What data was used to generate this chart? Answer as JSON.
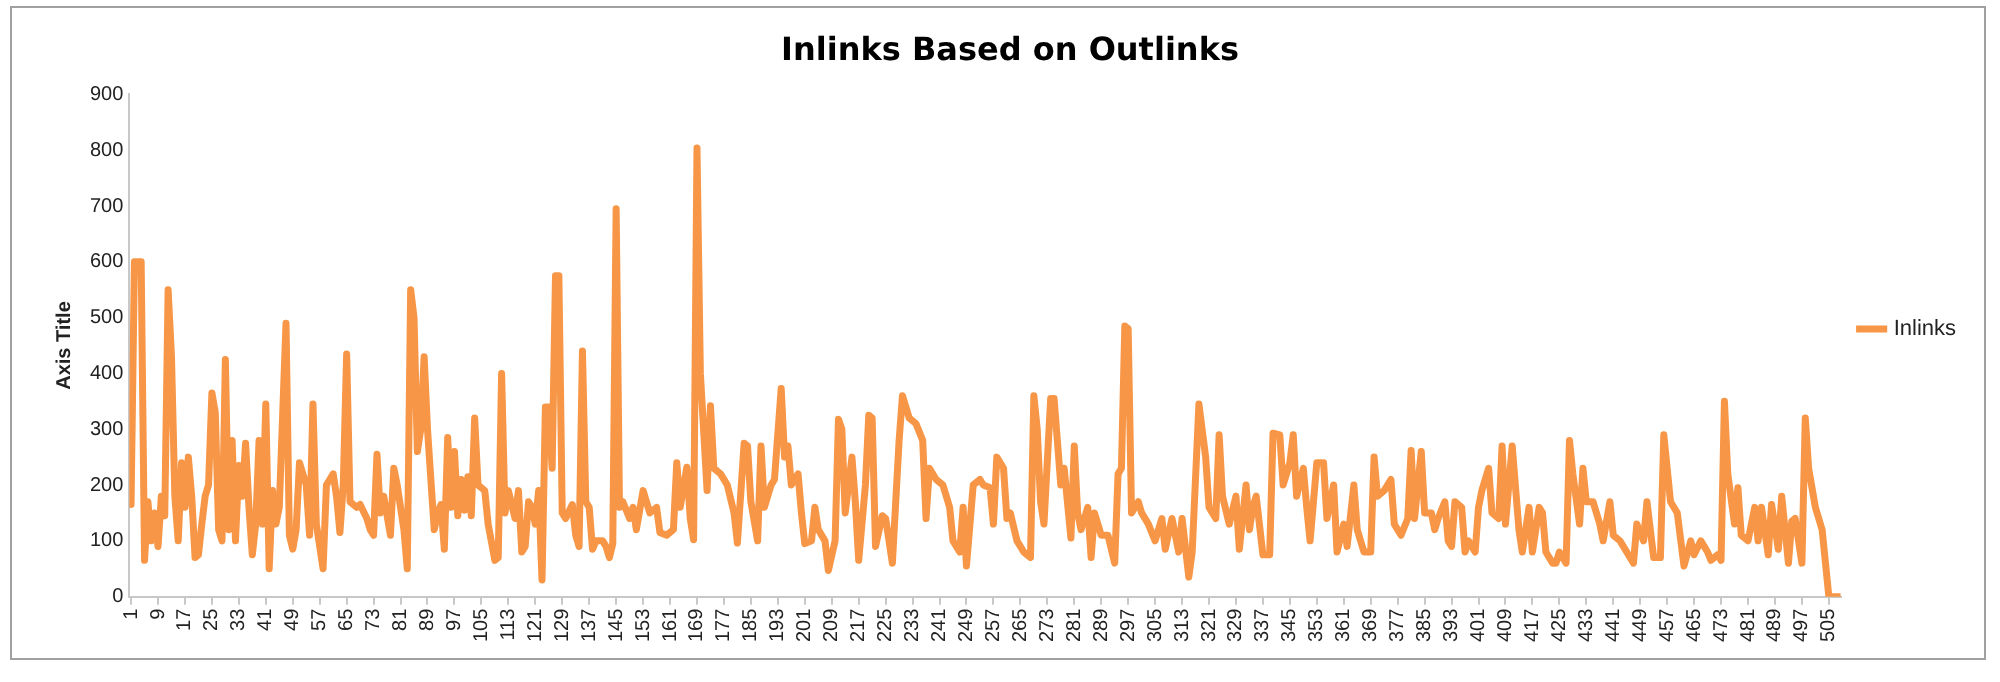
{
  "chart_data": {
    "type": "line",
    "title": "Inlinks Based on Outlinks",
    "ylabel": "Axis Title",
    "legend": "right",
    "grid": false,
    "marker": "none",
    "xlim": [
      0.5,
      508.5
    ],
    "xticks": [
      1,
      9,
      17,
      25,
      33,
      41,
      49,
      57,
      65,
      73,
      81,
      89,
      97,
      105,
      113,
      121,
      129,
      137,
      145,
      153,
      161,
      169,
      177,
      185,
      193,
      201,
      209,
      217,
      225,
      233,
      241,
      249,
      257,
      265,
      273,
      281,
      289,
      297,
      305,
      313,
      321,
      329,
      337,
      345,
      353,
      361,
      369,
      377,
      385,
      393,
      401,
      409,
      417,
      425,
      433,
      441,
      449,
      457,
      465,
      473,
      481,
      489,
      497,
      505
    ],
    "ylim": [
      0,
      900
    ],
    "yticks": [
      0,
      100,
      200,
      300,
      400,
      500,
      600,
      700,
      800,
      900
    ],
    "series": [
      {
        "name": "Inlinks",
        "color": "#f79646",
        "x": [
          1,
          2,
          4,
          5,
          6,
          7,
          8,
          9,
          10,
          11,
          12,
          13,
          14,
          15,
          16,
          17,
          18,
          19,
          20,
          21,
          22,
          23,
          24,
          25,
          26,
          27,
          28,
          29,
          30,
          31,
          32,
          33,
          34,
          35,
          36,
          37,
          38,
          39,
          40,
          41,
          42,
          43,
          44,
          45,
          47,
          48,
          49,
          50,
          51,
          53,
          54,
          55,
          56,
          58,
          59,
          60,
          61,
          62,
          63,
          64,
          65,
          66,
          68,
          69,
          71,
          72,
          73,
          74,
          75,
          76,
          78,
          79,
          80,
          82,
          83,
          84,
          85,
          86,
          87,
          88,
          89,
          91,
          92,
          93,
          94,
          95,
          96,
          97,
          98,
          99,
          100,
          101,
          102,
          103,
          104,
          106,
          107,
          109,
          110,
          111,
          112,
          113,
          115,
          116,
          117,
          118,
          119,
          120,
          121,
          122,
          123,
          124,
          125,
          126,
          127,
          128,
          129,
          130,
          132,
          133,
          134,
          135,
          136,
          137,
          138,
          139,
          141,
          142,
          143,
          144,
          145,
          146,
          147,
          149,
          150,
          151,
          153,
          154,
          155,
          157,
          158,
          160,
          162,
          163,
          164,
          166,
          167,
          168,
          169,
          170,
          172,
          173,
          174,
          176,
          178,
          180,
          181,
          183,
          184,
          185,
          187,
          188,
          189,
          191,
          192,
          194,
          195,
          196,
          197,
          199,
          200,
          201,
          203,
          204,
          205,
          207,
          208,
          210,
          211,
          212,
          213,
          215,
          216,
          217,
          219,
          220,
          221,
          222,
          224,
          225,
          227,
          229,
          230,
          232,
          234,
          236,
          237,
          238,
          240,
          242,
          244,
          245,
          247,
          248,
          249,
          251,
          253,
          254,
          256,
          257,
          258,
          260,
          261,
          262,
          264,
          266,
          268,
          269,
          270,
          271,
          272,
          274,
          275,
          277,
          278,
          280,
          281,
          282,
          283,
          285,
          286,
          287,
          289,
          291,
          293,
          294,
          295,
          296,
          297,
          298,
          300,
          301,
          303,
          305,
          307,
          308,
          310,
          312,
          313,
          315,
          316,
          318,
          320,
          321,
          323,
          324,
          325,
          327,
          329,
          330,
          332,
          333,
          334,
          335,
          337,
          339,
          340,
          342,
          343,
          345,
          346,
          347,
          349,
          350,
          351,
          353,
          355,
          356,
          358,
          359,
          361,
          362,
          364,
          365,
          367,
          369,
          370,
          371,
          373,
          375,
          376,
          378,
          380,
          381,
          382,
          384,
          385,
          387,
          388,
          389,
          391,
          392,
          393,
          394,
          396,
          397,
          398,
          400,
          401,
          402,
          404,
          405,
          407,
          408,
          409,
          411,
          413,
          414,
          416,
          417,
          419,
          420,
          421,
          423,
          424,
          425,
          427,
          428,
          429,
          431,
          432,
          433,
          435,
          437,
          438,
          440,
          441,
          443,
          445,
          447,
          448,
          450,
          451,
          453,
          455,
          456,
          458,
          460,
          462,
          464,
          465,
          467,
          469,
          470,
          472,
          473,
          474,
          475,
          477,
          478,
          479,
          481,
          483,
          484,
          485,
          487,
          488,
          490,
          491,
          493,
          494,
          495,
          497,
          498,
          499,
          501,
          503,
          505,
          508
        ],
        "values": [
          165,
          600,
          600,
          65,
          170,
          100,
          150,
          90,
          180,
          145,
          550,
          430,
          180,
          100,
          240,
          160,
          250,
          180,
          70,
          75,
          130,
          180,
          200,
          365,
          330,
          120,
          100,
          425,
          120,
          280,
          100,
          235,
          180,
          275,
          160,
          75,
          130,
          280,
          130,
          345,
          50,
          190,
          130,
          160,
          490,
          110,
          85,
          120,
          240,
          200,
          110,
          345,
          130,
          50,
          200,
          210,
          220,
          180,
          115,
          200,
          435,
          170,
          160,
          165,
          140,
          120,
          110,
          255,
          150,
          180,
          110,
          230,
          200,
          120,
          50,
          550,
          500,
          260,
          300,
          430,
          300,
          120,
          150,
          165,
          85,
          285,
          160,
          260,
          145,
          210,
          155,
          215,
          145,
          320,
          200,
          190,
          130,
          65,
          70,
          400,
          150,
          190,
          140,
          190,
          80,
          90,
          170,
          160,
          130,
          190,
          30,
          340,
          340,
          230,
          575,
          575,
          150,
          140,
          165,
          110,
          90,
          440,
          170,
          160,
          85,
          100,
          100,
          90,
          70,
          95,
          695,
          160,
          170,
          140,
          160,
          120,
          190,
          170,
          150,
          160,
          115,
          110,
          120,
          240,
          160,
          232,
          140,
          102,
          804,
          400,
          190,
          342,
          230,
          220,
          200,
          150,
          96,
          275,
          270,
          170,
          100,
          270,
          160,
          200,
          210,
          373,
          250,
          270,
          200,
          220,
          150,
          95,
          100,
          160,
          120,
          100,
          47,
          100,
          318,
          300,
          150,
          250,
          170,
          65,
          200,
          325,
          320,
          90,
          145,
          140,
          60,
          280,
          360,
          320,
          310,
          280,
          140,
          230,
          210,
          200,
          160,
          100,
          80,
          160,
          55,
          200,
          210,
          200,
          195,
          130,
          250,
          230,
          140,
          150,
          100,
          80,
          70,
          360,
          300,
          170,
          130,
          355,
          355,
          200,
          230,
          105,
          270,
          150,
          120,
          160,
          70,
          150,
          110,
          110,
          60,
          220,
          230,
          485,
          480,
          150,
          170,
          150,
          130,
          100,
          140,
          85,
          140,
          80,
          140,
          35,
          80,
          345,
          250,
          160,
          140,
          290,
          180,
          130,
          180,
          85,
          200,
          120,
          160,
          180,
          75,
          75,
          293,
          290,
          200,
          240,
          290,
          180,
          230,
          160,
          100,
          240,
          240,
          140,
          200,
          80,
          130,
          90,
          200,
          120,
          80,
          80,
          250,
          180,
          190,
          210,
          130,
          110,
          140,
          262,
          140,
          260,
          150,
          150,
          120,
          140,
          170,
          100,
          90,
          170,
          160,
          80,
          100,
          80,
          160,
          190,
          230,
          150,
          140,
          270,
          130,
          270,
          120,
          80,
          160,
          80,
          160,
          150,
          80,
          60,
          60,
          80,
          60,
          280,
          220,
          130,
          230,
          170,
          170,
          130,
          100,
          170,
          110,
          100,
          80,
          60,
          130,
          100,
          170,
          70,
          70,
          290,
          170,
          150,
          55,
          100,
          75,
          100,
          80,
          65,
          75,
          65,
          350,
          220,
          130,
          195,
          110,
          100,
          160,
          100,
          160,
          75,
          165,
          85,
          180,
          60,
          135,
          140,
          60,
          320,
          230,
          160,
          120,
          0,
          0
        ]
      }
    ]
  }
}
